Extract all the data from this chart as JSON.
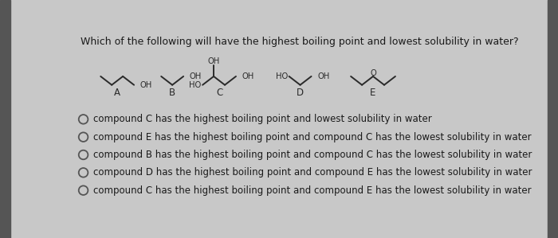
{
  "question": "Which of the following will have the highest boiling point and lowest solubility in water?",
  "bg_color": "#c8c8c8",
  "inner_bg": "#e8e8e4",
  "text_color": "#1a1a1a",
  "struct_color": "#2a2a2a",
  "options": [
    "compound C has the highest boiling point and lowest solubility in water",
    "compound E has the highest boiling point and compound C has the lowest solubility in water",
    "compound B has the highest boiling point and compound C has the lowest solubility in water",
    "compound D has the highest boiling point and compound E has the lowest solubility in water",
    "compound C has the highest boiling point and compound E has the lowest solubility in water"
  ],
  "question_fontsize": 9.0,
  "option_fontsize": 8.5,
  "struct_fontsize": 7.2,
  "label_fontsize": 8.5
}
